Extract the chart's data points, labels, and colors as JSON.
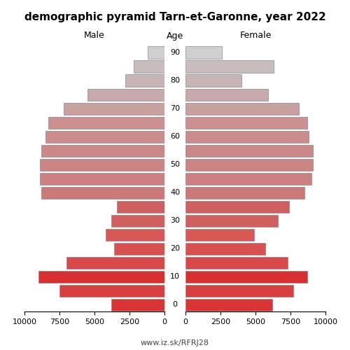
{
  "title": "demographic pyramid Tarn-et-Garonne, year 2022",
  "male_label": "Male",
  "female_label": "Female",
  "age_label": "Age",
  "footer": "www.iz.sk/RFRJ28",
  "age_groups": [
    0,
    5,
    10,
    15,
    20,
    25,
    30,
    35,
    40,
    45,
    50,
    55,
    60,
    65,
    70,
    75,
    80,
    85,
    90
  ],
  "male_values": [
    3800,
    7500,
    9000,
    7000,
    3600,
    4200,
    3800,
    3400,
    8800,
    8900,
    8900,
    8800,
    8500,
    8300,
    7200,
    5500,
    2800,
    2200,
    1200
  ],
  "female_values": [
    6200,
    7700,
    8700,
    7300,
    5700,
    4900,
    6600,
    7400,
    8500,
    9000,
    9100,
    9100,
    8800,
    8700,
    8100,
    5900,
    4000,
    6300,
    2600
  ],
  "male_colors": [
    "#d93535",
    "#d84040",
    "#d83030",
    "#d84848",
    "#d85050",
    "#d85858",
    "#d06060",
    "#d06060",
    "#cc7878",
    "#cc8080",
    "#cc8484",
    "#cc8888",
    "#cc8c8c",
    "#cc9090",
    "#c8a0a0",
    "#c8aaaa",
    "#c8b4b4",
    "#c8bcbc",
    "#d0d0d0"
  ],
  "female_colors": [
    "#d93535",
    "#d84040",
    "#d83030",
    "#d84848",
    "#d85050",
    "#d85858",
    "#d06060",
    "#d06060",
    "#cc7878",
    "#cc8080",
    "#cc8484",
    "#cc8888",
    "#cc8c8c",
    "#cc9090",
    "#c8a0a0",
    "#c8aaaa",
    "#c8b4b4",
    "#c8bcbc",
    "#d0d0d0"
  ],
  "xlim": 10000,
  "xticks": [
    0,
    2500,
    5000,
    7500,
    10000
  ],
  "bg_color": "#ffffff",
  "edge_color": "#888888",
  "edge_lw": 0.5,
  "bar_height": 0.85,
  "title_fontsize": 11,
  "label_fontsize": 9,
  "tick_fontsize": 8,
  "age_tick_fontsize": 8,
  "footer_fontsize": 8,
  "footer_color": "#444444"
}
